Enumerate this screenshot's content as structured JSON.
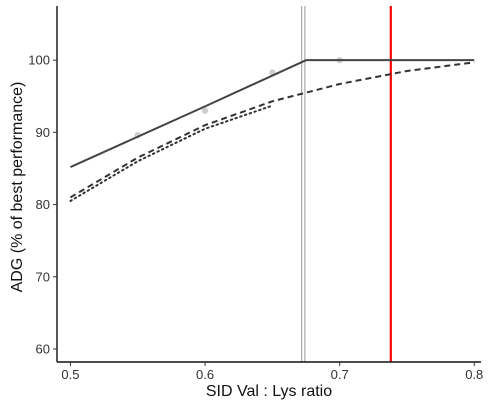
{
  "chart_data": {
    "type": "line",
    "xlabel": "SID Val : Lys ratio",
    "ylabel": "ADG (% of best performance)",
    "xlim": [
      0.49,
      0.805
    ],
    "ylim": [
      58.2,
      107.5
    ],
    "x_ticks": [
      0.5,
      0.6,
      0.7,
      0.8
    ],
    "y_ticks": [
      60,
      70,
      80,
      90,
      100
    ],
    "grid": false,
    "series": [
      {
        "style": "solid",
        "color": "#444444",
        "x": [
          0.5,
          0.6,
          0.675,
          0.8
        ],
        "y": [
          85.2,
          93.6,
          100,
          100
        ]
      },
      {
        "style": "dashed",
        "color": "#333333",
        "x": [
          0.5,
          0.55,
          0.6,
          0.65,
          0.7,
          0.75,
          0.8
        ],
        "y": [
          81.0,
          86.5,
          91.0,
          94.3,
          96.7,
          98.5,
          99.7
        ]
      },
      {
        "style": "dotted",
        "color": "#333333",
        "x": [
          0.5,
          0.55,
          0.6,
          0.65
        ],
        "y": [
          80.5,
          86.0,
          90.5,
          93.7
        ]
      }
    ],
    "points": [
      {
        "x": 0.55,
        "y": 89.6
      },
      {
        "x": 0.6,
        "y": 93.0
      },
      {
        "x": 0.65,
        "y": 98.3
      },
      {
        "x": 0.7,
        "y": 100.0
      }
    ],
    "vlines": [
      {
        "x": 0.673,
        "color": "#999999",
        "style": "double"
      },
      {
        "x": 0.738,
        "color": "#ff0000",
        "style": "solid"
      }
    ]
  }
}
